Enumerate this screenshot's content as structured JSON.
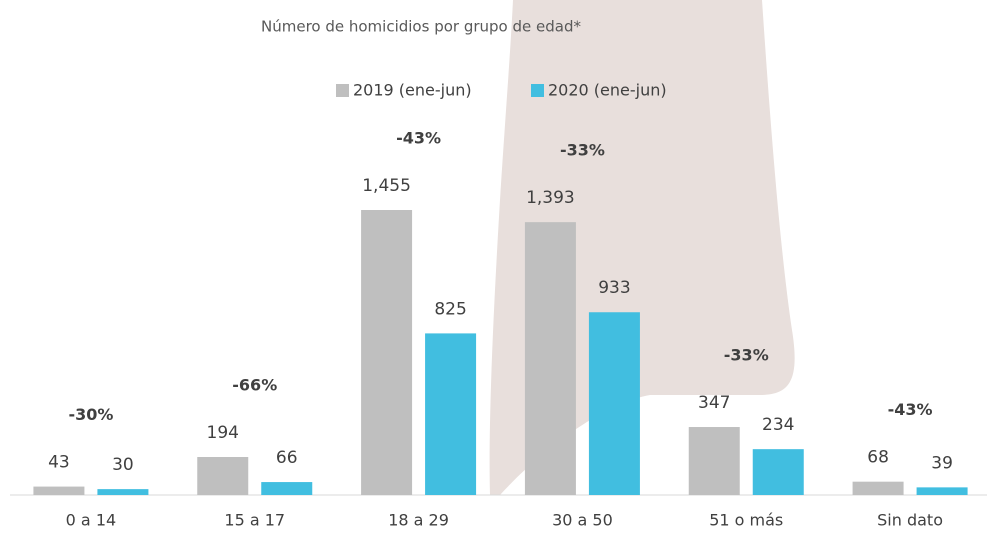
{
  "chart_data": {
    "type": "bar",
    "title": "Número de homicidios por grupo de edad*",
    "categories": [
      "0 a 14",
      "15 a 17",
      "18 a 29",
      "30 a 50",
      "51 o más",
      "Sin dato"
    ],
    "series": [
      {
        "name": "2019 (ene-jun)",
        "color": "#bfbfbf",
        "values": [
          43,
          194,
          1455,
          1393,
          347,
          68
        ],
        "value_labels": [
          "43",
          "194",
          "1,455",
          "1,393",
          "347",
          "68"
        ]
      },
      {
        "name": "2020 (ene-jun)",
        "color": "#41bee0",
        "values": [
          30,
          66,
          825,
          933,
          234,
          39
        ],
        "value_labels": [
          "30",
          "66",
          "825",
          "933",
          "234",
          "39"
        ]
      }
    ],
    "change_labels": [
      "-30%",
      "-66%",
      "-43%",
      "-33%",
      "-33%",
      "-43%"
    ],
    "legend": "top"
  }
}
